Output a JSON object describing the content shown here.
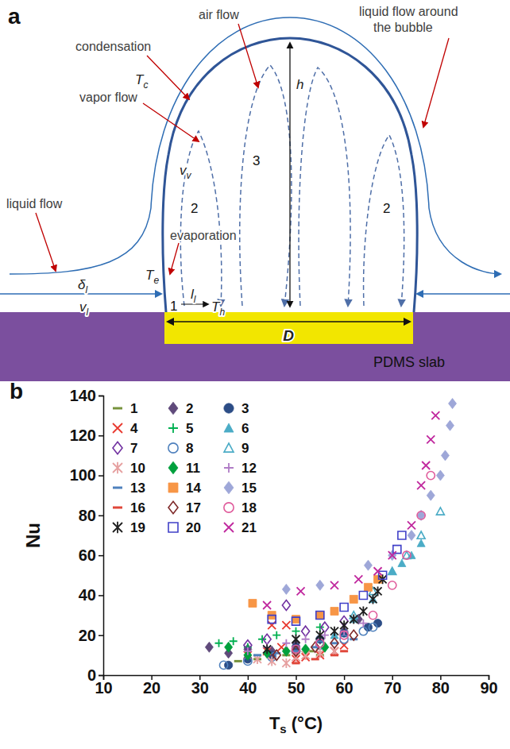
{
  "diagram": {
    "panel_label": "a",
    "labels": {
      "air_flow": "air flow",
      "liquid_flow_around": [
        "liquid flow around",
        "the bubble"
      ],
      "condensation": "condensation",
      "vapor_flow": "vapor flow",
      "liquid_flow": "liquid flow",
      "evaporation": "evaporation",
      "substrate": "PDMS slab"
    },
    "symbols": {
      "Tc": {
        "base": "T",
        "sub": "c"
      },
      "vv": {
        "base": "v",
        "sub": "v"
      },
      "h": {
        "base": "h"
      },
      "dl": {
        "base": "δ",
        "sub": "l"
      },
      "Te": {
        "base": "T",
        "sub": "e"
      },
      "vl": {
        "base": "v",
        "sub": "l"
      },
      "ll": {
        "base": "l",
        "sub": "l"
      },
      "Th": {
        "base": "T",
        "sub": "h"
      },
      "D": {
        "base": "D"
      }
    },
    "regions": [
      "1",
      "2",
      "3",
      "2"
    ]
  },
  "chart_data": {
    "type": "scatter",
    "panel_label": "b",
    "x_label": {
      "base": "T",
      "sub": "s",
      "unit": " (°C)"
    },
    "y_label": "Nu",
    "xlim": [
      10,
      90
    ],
    "xticks": [
      10,
      20,
      30,
      40,
      50,
      60,
      70,
      80,
      90
    ],
    "ylim": [
      0,
      140
    ],
    "yticks": [
      0,
      20,
      40,
      60,
      80,
      100,
      120,
      140
    ],
    "grid": false,
    "legend": "top-left",
    "series": [
      {
        "name": "1",
        "color": "#77933c",
        "marker": "dash",
        "x": [
          38,
          42,
          45,
          48,
          50,
          53,
          55
        ],
        "values": [
          7,
          8,
          9,
          10,
          11,
          12,
          10
        ]
      },
      {
        "name": "2",
        "color": "#604a7b",
        "marker": "diamond",
        "x": [
          32,
          36,
          40,
          45,
          50,
          55,
          60,
          63
        ],
        "values": [
          14,
          11,
          13,
          12,
          16,
          18,
          22,
          28
        ]
      },
      {
        "name": "3",
        "color": "#2c4d86",
        "marker": "circle",
        "x": [
          36,
          40,
          45,
          50,
          55,
          60,
          65,
          67
        ],
        "values": [
          5,
          8,
          10,
          14,
          18,
          21,
          24,
          26
        ]
      },
      {
        "name": "4",
        "color": "#e8392f",
        "marker": "cross",
        "x": [
          40,
          44,
          45,
          47,
          48,
          50,
          52,
          55,
          58,
          60
        ],
        "values": [
          10,
          12,
          25,
          14,
          25,
          8,
          9,
          10,
          12,
          15
        ]
      },
      {
        "name": "5",
        "color": "#00b050",
        "marker": "plus",
        "x": [
          34,
          37,
          40,
          43,
          46,
          50,
          55
        ],
        "values": [
          16,
          17,
          14,
          18,
          20,
          22,
          24
        ]
      },
      {
        "name": "6",
        "color": "#4bacc6",
        "marker": "triangle",
        "x": [
          58,
          62,
          66,
          70,
          72,
          74,
          76
        ],
        "values": [
          20,
          28,
          38,
          52,
          56,
          60,
          66
        ]
      },
      {
        "name": "7",
        "color": "#7030a0",
        "marker": "diamond_open",
        "x": [
          40,
          44,
          48,
          52,
          56,
          60
        ],
        "values": [
          15,
          18,
          35,
          22,
          24,
          27
        ]
      },
      {
        "name": "8",
        "color": "#4f81bd",
        "marker": "circle_open",
        "x": [
          35,
          40,
          45,
          50,
          55,
          60,
          64,
          66
        ],
        "values": [
          5,
          7,
          9,
          12,
          15,
          18,
          22,
          24
        ]
      },
      {
        "name": "9",
        "color": "#4bacc6",
        "marker": "triangle_open",
        "x": [
          62,
          66,
          70,
          73,
          76,
          80
        ],
        "values": [
          30,
          42,
          52,
          60,
          70,
          82
        ]
      },
      {
        "name": "10",
        "color": "#e6a0a0",
        "marker": "asterisk",
        "x": [
          42,
          45,
          48,
          50,
          52,
          55,
          58
        ],
        "values": [
          8,
          7,
          6,
          9,
          10,
          11,
          12
        ]
      },
      {
        "name": "11",
        "color": "#00a03c",
        "marker": "diamond",
        "x": [
          36,
          40,
          44,
          48,
          52,
          56
        ],
        "values": [
          14,
          10,
          11,
          12,
          13,
          14
        ]
      },
      {
        "name": "12",
        "color": "#b07cc6",
        "marker": "plus",
        "x": [
          40,
          44,
          48,
          52,
          56,
          60,
          64
        ],
        "values": [
          12,
          14,
          16,
          18,
          20,
          22,
          26
        ]
      },
      {
        "name": "13",
        "color": "#4f81bd",
        "marker": "dash",
        "x": [
          42,
          46,
          50,
          54,
          58,
          62
        ],
        "values": [
          10,
          11,
          12,
          14,
          16,
          18
        ]
      },
      {
        "name": "14",
        "color": "#f79646",
        "marker": "square",
        "x": [
          41,
          45,
          50,
          55,
          58,
          62,
          65,
          67
        ],
        "values": [
          36,
          30,
          28,
          30,
          32,
          38,
          44,
          48
        ]
      },
      {
        "name": "15",
        "color": "#9ea7d8",
        "marker": "diamond",
        "x": [
          48,
          55,
          65,
          70,
          74,
          76,
          78,
          80,
          81,
          82,
          82.5
        ],
        "values": [
          43,
          45,
          55,
          60,
          70,
          80,
          90,
          100,
          110,
          125,
          136
        ]
      },
      {
        "name": "16",
        "color": "#e0473a",
        "marker": "dash",
        "x": [
          50,
          54,
          58,
          60
        ],
        "values": [
          6,
          8,
          10,
          12
        ]
      },
      {
        "name": "17",
        "color": "#7f2a2a",
        "marker": "diamond_open",
        "x": [
          46,
          50,
          54,
          58,
          62
        ],
        "values": [
          10,
          12,
          14,
          16,
          20
        ]
      },
      {
        "name": "18",
        "color": "#e05c9c",
        "marker": "circle_open",
        "x": [
          50,
          55,
          60,
          66,
          70,
          73,
          76,
          78
        ],
        "values": [
          13,
          16,
          20,
          30,
          45,
          60,
          80,
          100
        ]
      },
      {
        "name": "19",
        "color": "#1f1f1f",
        "marker": "asterisk",
        "x": [
          44,
          50,
          55,
          58,
          60,
          62,
          64,
          66,
          67,
          68
        ],
        "values": [
          13,
          18,
          20,
          22,
          25,
          28,
          32,
          38,
          42,
          48
        ]
      },
      {
        "name": "20",
        "color": "#4040c8",
        "marker": "square_open",
        "x": [
          45,
          50,
          55,
          60,
          64,
          68,
          71,
          72
        ],
        "values": [
          28,
          27,
          30,
          34,
          40,
          50,
          63,
          70
        ]
      },
      {
        "name": "21",
        "color": "#c0289e",
        "marker": "cross",
        "x": [
          44,
          51,
          58,
          63,
          67,
          70,
          74,
          76,
          77,
          78,
          79
        ],
        "values": [
          35,
          42,
          45,
          48,
          52,
          60,
          75,
          95,
          105,
          118,
          130
        ]
      }
    ]
  }
}
